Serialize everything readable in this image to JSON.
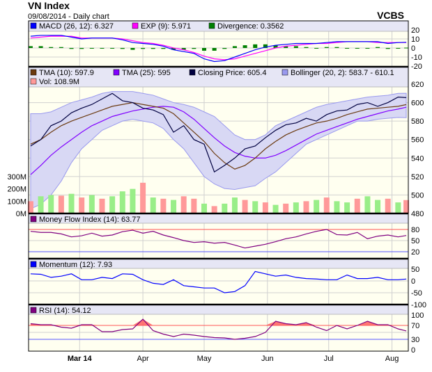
{
  "header": {
    "title": "VN Index",
    "subtitle": "09/08/2014 - Daily chart",
    "brand": "VCBS"
  },
  "colors": {
    "plot_bg": "#fffff0",
    "legend_bg": "#e6e6f5",
    "grid": "#d0d0d0",
    "macd": "#0000ff",
    "exp": "#ff00ff",
    "divergence": "#008000",
    "tma10": "#6b3a10",
    "tma25": "#8000ff",
    "close": "#000040",
    "bollinger": "#9999ee",
    "bollinger_fill": "#d8d8f4",
    "vol_up": "#99ee88",
    "vol_down": "#ff9999",
    "mfi": "#800080",
    "momentum": "#0000ff",
    "rsi": "#800080",
    "overbought": "#ff5555",
    "oversold": "#5555ff"
  },
  "chart_data": {
    "type": "line",
    "x_tick_labels": [
      {
        "label": "Mar 14",
        "date": "2014-03-01",
        "bold": true
      },
      {
        "label": "Apr",
        "date": "2014-04-01"
      },
      {
        "label": "May",
        "date": "2014-05-01"
      },
      {
        "label": "Jun",
        "date": "2014-06-01"
      },
      {
        "label": "Jul",
        "date": "2014-07-01"
      },
      {
        "label": "Aug",
        "date": "2014-08-01"
      }
    ],
    "xlim": [
      "2014-02-04",
      "2014-08-09"
    ],
    "dates": [
      "2014-02-05",
      "2014-02-10",
      "2014-02-15",
      "2014-02-20",
      "2014-02-25",
      "2014-03-02",
      "2014-03-07",
      "2014-03-12",
      "2014-03-17",
      "2014-03-22",
      "2014-03-27",
      "2014-04-01",
      "2014-04-06",
      "2014-04-11",
      "2014-04-16",
      "2014-04-21",
      "2014-04-26",
      "2014-05-01",
      "2014-05-06",
      "2014-05-11",
      "2014-05-16",
      "2014-05-21",
      "2014-05-26",
      "2014-05-31",
      "2014-06-05",
      "2014-06-10",
      "2014-06-15",
      "2014-06-20",
      "2014-06-25",
      "2014-06-30",
      "2014-07-05",
      "2014-07-10",
      "2014-07-15",
      "2014-07-20",
      "2014-07-25",
      "2014-07-30",
      "2014-08-04",
      "2014-08-08"
    ],
    "macd_panel": {
      "legend": {
        "macd": "MACD (26, 12): 6.327",
        "exp": "EXP (9): 5.971",
        "divergence": "Divergence: 0.3562"
      },
      "ylim": [
        -20,
        20
      ],
      "yticks": [
        "20",
        "10",
        "0",
        "-10",
        "-20"
      ],
      "macd": [
        13,
        14,
        14,
        14,
        12,
        10,
        11,
        11,
        11,
        9,
        6,
        5,
        4,
        2,
        -2,
        -4,
        -6,
        -12,
        -15,
        -14,
        -10,
        -6,
        -2,
        1,
        3,
        4,
        5,
        5,
        5,
        6,
        7,
        7,
        7,
        7,
        7,
        5,
        6,
        6.3
      ],
      "exp": [
        11,
        12,
        13,
        13,
        13,
        11,
        11,
        11,
        11,
        10,
        8,
        6,
        5,
        3,
        0,
        -2,
        -5,
        -9,
        -12,
        -13,
        -12,
        -9,
        -6,
        -3,
        0,
        2,
        3,
        4,
        5,
        5,
        6,
        7,
        7,
        7,
        6,
        6,
        6,
        6
      ],
      "divergence": [
        2,
        2,
        1,
        1,
        -1,
        -1,
        0,
        0,
        0,
        -1,
        -2,
        -1,
        -1,
        -1,
        -2,
        -2,
        -1,
        -3,
        -3,
        -1,
        2,
        3,
        4,
        4,
        3,
        2,
        2,
        1,
        0,
        1,
        1,
        0,
        0,
        0,
        1,
        -1,
        0,
        0.36
      ]
    },
    "price_panel": {
      "legend": {
        "tma10": "TMA (10): 597.9",
        "tma25": "TMA (25): 595",
        "close": "Closing Price: 605.4",
        "bollinger": "Bollinger (20, 2): 583.7 - 610.1",
        "volume": "Vol: 108.9M"
      },
      "ylim": [
        480,
        620
      ],
      "yticks": [
        "620",
        "600",
        "580",
        "560",
        "540",
        "520",
        "500",
        "480"
      ],
      "vol_ylim": [
        0,
        300
      ],
      "vol_yticks": [
        "300M",
        "200M",
        "100M",
        "0M"
      ],
      "close": [
        553,
        560,
        575,
        580,
        589,
        594,
        598,
        604,
        610,
        602,
        600,
        594,
        592,
        587,
        568,
        575,
        560,
        555,
        525,
        532,
        540,
        550,
        553,
        562,
        570,
        576,
        578,
        583,
        580,
        587,
        591,
        592,
        598,
        600,
        596,
        600,
        606,
        605.4
      ],
      "tma10": [
        555,
        560,
        568,
        575,
        580,
        584,
        588,
        592,
        596,
        598,
        600,
        598,
        596,
        594,
        588,
        578,
        568,
        558,
        545,
        535,
        528,
        532,
        540,
        550,
        558,
        565,
        570,
        574,
        578,
        580,
        583,
        587,
        590,
        593,
        594,
        595,
        596,
        597.9
      ],
      "tma25": [
        522,
        532,
        543,
        552,
        560,
        568,
        575,
        580,
        585,
        588,
        591,
        593,
        595,
        596,
        595,
        590,
        582,
        572,
        562,
        553,
        546,
        542,
        540,
        540,
        543,
        548,
        554,
        560,
        566,
        570,
        574,
        578,
        582,
        585,
        588,
        591,
        593,
        595
      ],
      "bollinger_upper": [
        588,
        588,
        590,
        595,
        600,
        603,
        606,
        610,
        612,
        612,
        612,
        610,
        608,
        604,
        600,
        598,
        595,
        590,
        585,
        575,
        565,
        560,
        560,
        565,
        575,
        580,
        585,
        590,
        595,
        598,
        600,
        602,
        604,
        606,
        607,
        608,
        610,
        610.1
      ],
      "bollinger_lower": [
        485,
        490,
        500,
        515,
        535,
        550,
        560,
        570,
        575,
        580,
        582,
        580,
        578,
        572,
        560,
        550,
        535,
        520,
        512,
        507,
        506,
        508,
        510,
        518,
        525,
        535,
        545,
        555,
        560,
        565,
        570,
        575,
        580,
        580,
        582,
        583,
        584,
        583.7
      ],
      "volume": [
        100,
        140,
        150,
        145,
        160,
        130,
        150,
        120,
        140,
        180,
        200,
        250,
        130,
        120,
        110,
        140,
        120,
        80,
        60,
        80,
        130,
        110,
        100,
        90,
        70,
        80,
        90,
        100,
        110,
        130,
        100,
        90,
        120,
        140,
        110,
        120,
        90,
        108.9
      ],
      "volume_up": [
        false,
        true,
        true,
        false,
        true,
        false,
        true,
        false,
        true,
        true,
        true,
        false,
        true,
        false,
        true,
        false,
        false,
        true,
        false,
        true,
        true,
        false,
        true,
        false,
        true,
        false,
        true,
        false,
        true,
        false,
        true,
        true,
        false,
        true,
        true,
        false,
        true,
        false
      ]
    },
    "mfi_panel": {
      "legend": "Money Flow Index (14): 63.77",
      "ylim": [
        0,
        100
      ],
      "yticks": [
        "80",
        "50",
        "20"
      ],
      "levels": [
        80,
        20
      ],
      "values": [
        75,
        72,
        72,
        68,
        60,
        63,
        70,
        62,
        65,
        74,
        78,
        70,
        75,
        65,
        58,
        50,
        45,
        47,
        43,
        45,
        38,
        30,
        35,
        40,
        47,
        55,
        60,
        68,
        75,
        80,
        66,
        65,
        72,
        55,
        62,
        65,
        60,
        63.77
      ]
    },
    "momentum_panel": {
      "legend": "Momentum (12): 7.93",
      "ylim": [
        -100,
        50
      ],
      "yticks": [
        "50",
        "0",
        "-50",
        "-100"
      ],
      "values": [
        30,
        28,
        15,
        20,
        30,
        5,
        5,
        15,
        10,
        30,
        28,
        5,
        -10,
        -15,
        5,
        -20,
        -25,
        -30,
        -30,
        -50,
        -45,
        -20,
        40,
        30,
        20,
        25,
        15,
        10,
        8,
        5,
        5,
        25,
        10,
        10,
        15,
        5,
        5,
        7.93
      ]
    },
    "rsi_panel": {
      "legend": "RSI (14): 54.12",
      "ylim": [
        0,
        100
      ],
      "yticks": [
        "100",
        "70",
        "30",
        "0"
      ],
      "levels": [
        70,
        30
      ],
      "values": [
        75,
        72,
        72,
        65,
        62,
        72,
        72,
        52,
        52,
        58,
        60,
        88,
        55,
        45,
        38,
        45,
        42,
        38,
        35,
        34,
        30,
        33,
        38,
        50,
        82,
        75,
        72,
        78,
        65,
        55,
        70,
        60,
        70,
        82,
        72,
        72,
        60,
        54.12
      ]
    }
  }
}
